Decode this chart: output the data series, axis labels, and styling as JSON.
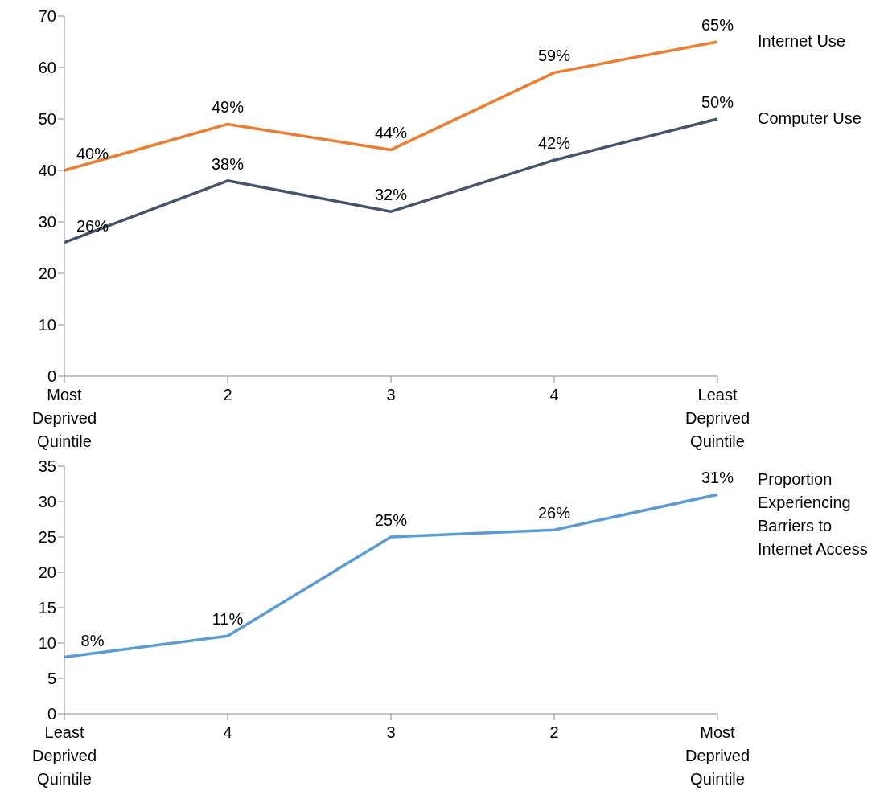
{
  "chart_data": [
    {
      "type": "line",
      "categories": [
        "Most Deprived Quintile",
        "2",
        "3",
        "4",
        "Least Deprived Quintile"
      ],
      "ylim": [
        0,
        70
      ],
      "yticks": [
        0,
        10,
        20,
        30,
        40,
        50,
        60,
        70
      ],
      "grid": false,
      "legend": false,
      "series": [
        {
          "name": "Internet Use",
          "color": "#ed7d31",
          "values": [
            40,
            49,
            44,
            59,
            65
          ],
          "value_labels": [
            "40%",
            "49%",
            "44%",
            "59%",
            "65%"
          ]
        },
        {
          "name": "Computer Use",
          "color": "#44546a",
          "values": [
            26,
            38,
            32,
            42,
            50
          ],
          "value_labels": [
            "26%",
            "38%",
            "32%",
            "42%",
            "50%"
          ]
        }
      ]
    },
    {
      "type": "line",
      "categories": [
        "Least Deprived Quintile",
        "4",
        "3",
        "2",
        "Most Deprived Quintile"
      ],
      "ylim": [
        0,
        35
      ],
      "yticks": [
        0,
        5,
        10,
        15,
        20,
        25,
        30,
        35
      ],
      "grid": false,
      "legend": false,
      "series": [
        {
          "name": "Proportion Experiencing Barriers to Internet Access",
          "color": "#5b9bd5",
          "values": [
            8,
            11,
            25,
            26,
            31
          ],
          "value_labels": [
            "8%",
            "11%",
            "25%",
            "26%",
            "31%"
          ]
        }
      ]
    }
  ]
}
